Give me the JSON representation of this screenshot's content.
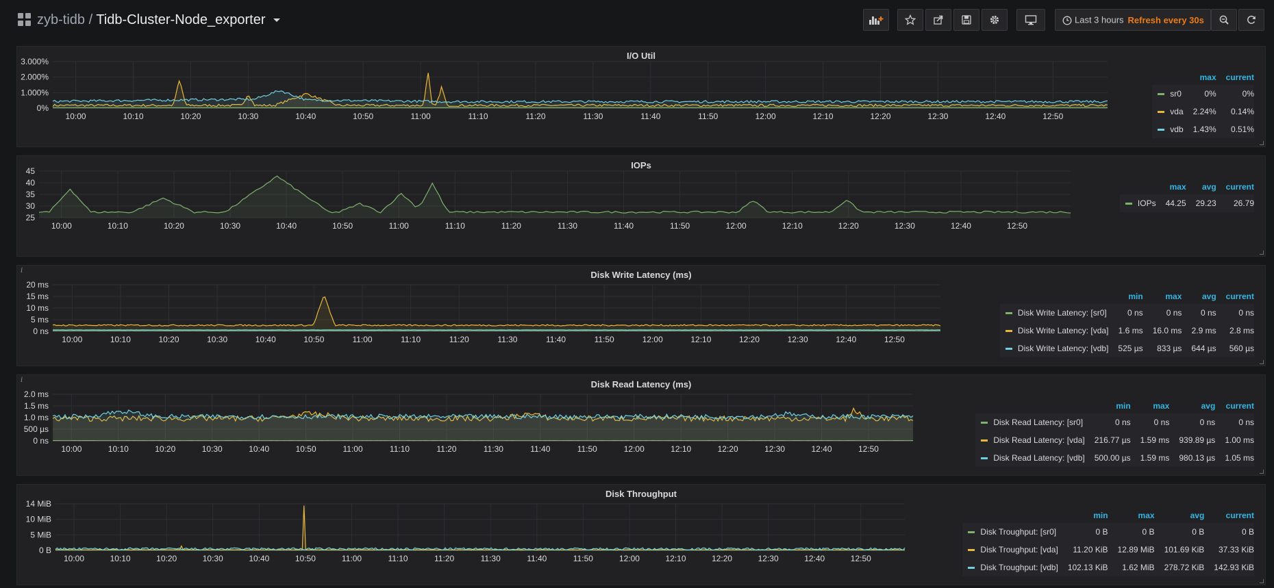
{
  "navbar": {
    "folder": "zyb-tidb",
    "separator": "/",
    "dashboard": "Tidb-Cluster-Node_exporter",
    "time_range": "Last 3 hours",
    "refresh": "Refresh every 30s",
    "icons": [
      "add-panel-icon",
      "star-icon",
      "share-icon",
      "save-icon",
      "settings-icon",
      "tv-mode-icon",
      "clock-icon",
      "zoom-out-icon",
      "refresh-icon"
    ]
  },
  "colors": {
    "green": "#7eb26d",
    "yellow": "#eab839",
    "blue": "#6ed0e0",
    "legend_header": "#33b5e5",
    "refresh": "#eb7b18"
  },
  "x_ticks": [
    "10:00",
    "10:10",
    "10:20",
    "10:30",
    "10:40",
    "10:50",
    "11:00",
    "11:10",
    "11:20",
    "11:30",
    "11:40",
    "11:50",
    "12:00",
    "12:10",
    "12:20",
    "12:30",
    "12:40",
    "12:50"
  ],
  "panels": [
    {
      "id": "io-util",
      "title": "I/O Util",
      "info": "",
      "y_ticks": [
        "3.000%",
        "2.000%",
        "1.000%",
        "0%"
      ],
      "legend_headers": [
        "max",
        "current"
      ],
      "series": [
        {
          "name": "sr0",
          "color": "#7eb26d",
          "stats": [
            "0%",
            "0%"
          ]
        },
        {
          "name": "vda",
          "color": "#eab839",
          "stats": [
            "2.24%",
            "0.14%"
          ]
        },
        {
          "name": "vdb",
          "color": "#6ed0e0",
          "stats": [
            "1.43%",
            "0.51%"
          ]
        }
      ]
    },
    {
      "id": "iops",
      "title": "IOPs",
      "info": "",
      "y_ticks": [
        "45",
        "40",
        "35",
        "30",
        "25"
      ],
      "legend_headers": [
        "max",
        "avg",
        "current"
      ],
      "series": [
        {
          "name": "IOPs",
          "color": "#7eb26d",
          "stats": [
            "44.25",
            "29.23",
            "26.79"
          ]
        }
      ]
    },
    {
      "id": "disk-write-latency",
      "title": "Disk Write Latency (ms)",
      "info": "i",
      "y_ticks": [
        "20 ms",
        "15 ms",
        "10 ms",
        "5 ms",
        "0 ns"
      ],
      "legend_headers": [
        "min",
        "max",
        "avg",
        "current"
      ],
      "series": [
        {
          "name": "Disk Write Latency: [sr0]",
          "color": "#7eb26d",
          "stats": [
            "0 ns",
            "0 ns",
            "0 ns",
            "0 ns"
          ]
        },
        {
          "name": "Disk Write Latency: [vda]",
          "color": "#eab839",
          "stats": [
            "1.6 ms",
            "16.0 ms",
            "2.9 ms",
            "2.8 ms"
          ]
        },
        {
          "name": "Disk Write Latency: [vdb]",
          "color": "#6ed0e0",
          "stats": [
            "525 µs",
            "833 µs",
            "644 µs",
            "560 µs"
          ]
        }
      ]
    },
    {
      "id": "disk-read-latency",
      "title": "Disk Read Latency (ms)",
      "info": "i",
      "y_ticks": [
        "2.0 ms",
        "1.5 ms",
        "1.0 ms",
        "500 µs",
        "0 ns"
      ],
      "legend_headers": [
        "min",
        "max",
        "avg",
        "current"
      ],
      "series": [
        {
          "name": "Disk Read Latency: [sr0]",
          "color": "#7eb26d",
          "stats": [
            "0 ns",
            "0 ns",
            "0 ns",
            "0 ns"
          ]
        },
        {
          "name": "Disk Read Latency: [vda]",
          "color": "#eab839",
          "stats": [
            "216.77 µs",
            "1.59 ms",
            "939.89 µs",
            "1.00 ms"
          ]
        },
        {
          "name": "Disk Read Latency: [vdb]",
          "color": "#6ed0e0",
          "stats": [
            "500.00 µs",
            "1.59 ms",
            "980.13 µs",
            "1.05 ms"
          ]
        }
      ]
    },
    {
      "id": "disk-throughput",
      "title": "Disk Throughput",
      "info": "",
      "y_ticks": [
        "14 MiB",
        "10 MiB",
        "5 MiB",
        "0 B"
      ],
      "legend_headers": [
        "min",
        "max",
        "avg",
        "current"
      ],
      "series": [
        {
          "name": "Disk Troughput: [sr0]",
          "color": "#7eb26d",
          "stats": [
            "0 B",
            "0 B",
            "0 B",
            "0 B"
          ]
        },
        {
          "name": "Disk Troughput: [vda]",
          "color": "#eab839",
          "stats": [
            "11.20 KiB",
            "12.89 MiB",
            "101.69 KiB",
            "37.33 KiB"
          ]
        },
        {
          "name": "Disk Troughput: [vdb]",
          "color": "#6ed0e0",
          "stats": [
            "102.13 KiB",
            "1.62 MiB",
            "278.72 KiB",
            "142.93 KiB"
          ]
        }
      ]
    }
  ]
}
